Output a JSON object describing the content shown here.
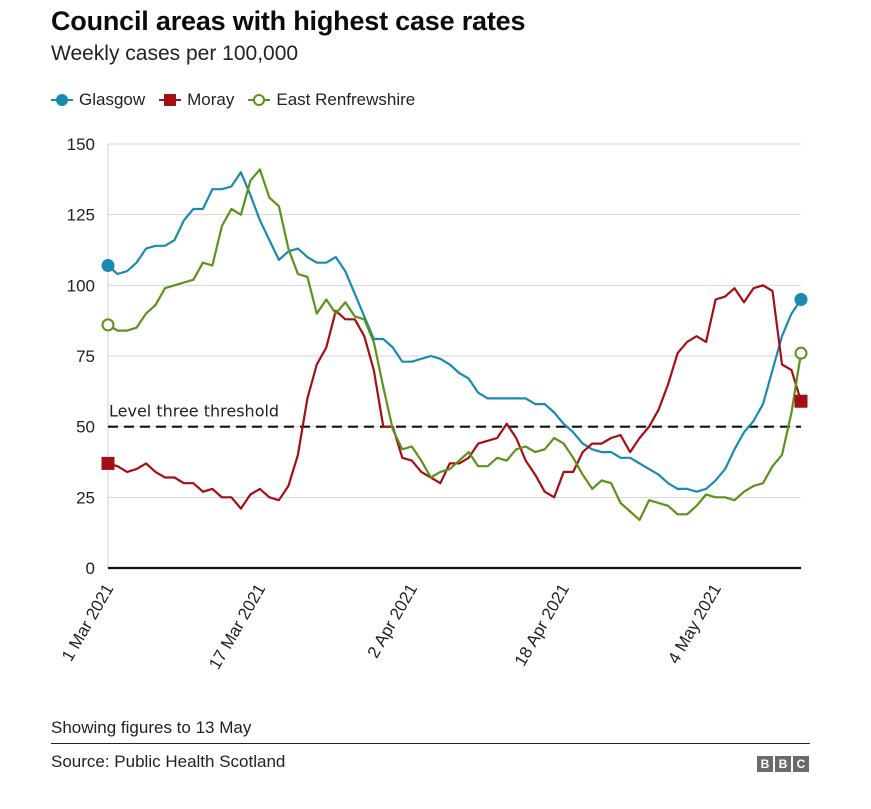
{
  "header": {
    "title": "Council areas with highest case rates",
    "subtitle": "Weekly cases per 100,000"
  },
  "legend": [
    {
      "name": "Glasgow",
      "marker": "circle-filled",
      "color": "#1b8ab3"
    },
    {
      "name": "Moray",
      "marker": "square-filled",
      "color": "#a30f14"
    },
    {
      "name": "East Renfrewshire",
      "marker": "circle-open",
      "color": "#5d9219"
    }
  ],
  "footer": {
    "note": "Showing figures to 13 May",
    "source": "Source: Public Health Scotland",
    "logo_letters": [
      "B",
      "B",
      "C"
    ]
  },
  "chart_data": {
    "type": "line",
    "title": "Council areas with highest case rates",
    "subtitle": "Weekly cases per 100,000",
    "xlabel": "",
    "ylabel": "",
    "x_start": "1 Mar 2021",
    "x_end": "13 May 2021",
    "x_days": 73,
    "xticks": [
      {
        "day": 0,
        "label": "1 Mar 2021"
      },
      {
        "day": 16,
        "label": "17 Mar 2021"
      },
      {
        "day": 32,
        "label": "2 Apr 2021"
      },
      {
        "day": 48,
        "label": "18 Apr 2021"
      },
      {
        "day": 64,
        "label": "4 May 2021"
      }
    ],
    "ylim": [
      0,
      150
    ],
    "yticks": [
      0,
      25,
      50,
      75,
      100,
      125,
      150
    ],
    "grid": true,
    "legend_position": "top-left",
    "annotations": [
      {
        "type": "hline",
        "y": 50,
        "label": "Level three threshold",
        "style": "dashed",
        "color": "#111111"
      }
    ],
    "series": [
      {
        "name": "Glasgow",
        "color": "#1b8ab3",
        "end_marker": "circle-filled",
        "values": [
          107,
          104,
          105,
          108,
          113,
          114,
          114,
          116,
          123,
          127,
          127,
          134,
          134,
          135,
          140,
          132,
          123,
          116,
          109,
          112,
          113,
          110,
          108,
          108,
          110,
          105,
          97,
          89,
          81,
          81,
          78,
          73,
          73,
          74,
          75,
          74,
          72,
          69,
          67,
          62,
          60,
          60,
          60,
          60,
          60,
          58,
          58,
          55,
          51,
          48,
          44,
          42,
          41,
          41,
          39,
          39,
          37,
          35,
          33,
          30,
          28,
          28,
          27,
          28,
          31,
          35,
          42,
          48,
          52,
          58,
          70,
          82,
          90,
          95
        ]
      },
      {
        "name": "Moray",
        "color": "#a30f14",
        "end_marker": "square-filled",
        "values": [
          37,
          36,
          34,
          35,
          37,
          34,
          32,
          32,
          30,
          30,
          27,
          28,
          25,
          25,
          21,
          26,
          28,
          25,
          24,
          29,
          40,
          60,
          72,
          78,
          91,
          88,
          88,
          82,
          70,
          50,
          50,
          39,
          38,
          34,
          32,
          30,
          37,
          37,
          39,
          44,
          45,
          46,
          51,
          46,
          38,
          33,
          27,
          25,
          34,
          34,
          41,
          44,
          44,
          46,
          47,
          41,
          46,
          50,
          56,
          65,
          76,
          80,
          82,
          80,
          95,
          96,
          99,
          94,
          99,
          100,
          98,
          72,
          70,
          59
        ]
      },
      {
        "name": "East Renfrewshire",
        "color": "#5d9219",
        "end_marker": "circle-open",
        "values": [
          86,
          84,
          84,
          85,
          90,
          93,
          99,
          100,
          101,
          102,
          108,
          107,
          121,
          127,
          125,
          137,
          141,
          131,
          128,
          113,
          104,
          103,
          90,
          95,
          90,
          94,
          89,
          88,
          80,
          64,
          49,
          42,
          43,
          38,
          32,
          34,
          35,
          38,
          41,
          36,
          36,
          39,
          38,
          42,
          43,
          41,
          42,
          46,
          44,
          39,
          33,
          28,
          31,
          30,
          23,
          20,
          17,
          24,
          23,
          22,
          19,
          19,
          22,
          26,
          25,
          25,
          24,
          27,
          29,
          30,
          36,
          40,
          55,
          76
        ]
      }
    ]
  }
}
